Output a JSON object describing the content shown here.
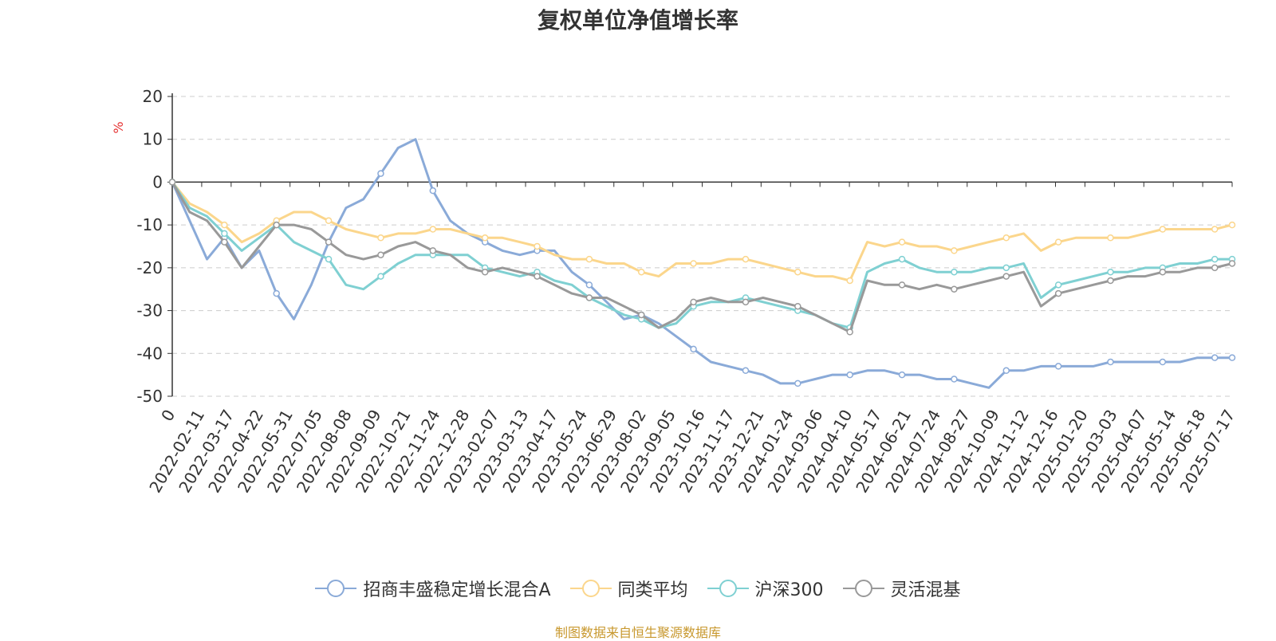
{
  "chart_data": {
    "type": "line",
    "title": "复权单位净值增长率",
    "ylabel": "%",
    "ylim": [
      -50,
      20
    ],
    "yticks": [
      20,
      10,
      0,
      -10,
      -20,
      -30,
      -40,
      -50
    ],
    "grid": true,
    "legend_position": "bottom",
    "x_tick_labels": [
      "0",
      "2022-02-11",
      "2022-03-17",
      "2022-04-22",
      "2022-05-31",
      "2022-07-05",
      "2022-08-08",
      "2022-09-09",
      "2022-10-21",
      "2022-11-24",
      "2022-12-28",
      "2023-02-07",
      "2023-03-13",
      "2023-04-17",
      "2023-05-24",
      "2023-06-29",
      "2023-08-02",
      "2023-09-05",
      "2023-10-16",
      "2023-11-17",
      "2023-12-21",
      "2024-01-24",
      "2024-03-06",
      "2024-04-10",
      "2024-05-17",
      "2024-06-21",
      "2024-07-24",
      "2024-08-27",
      "2024-10-09",
      "2024-11-12",
      "2024-12-16",
      "2025-01-20",
      "2025-03-03",
      "2025-04-07",
      "2025-05-14",
      "2025-06-18",
      "2025-07-17"
    ],
    "series": [
      {
        "name": "招商丰盛稳定增长混合A",
        "color": "#8aaad8",
        "values": [
          0,
          -9,
          -18,
          -13,
          -20,
          -16,
          -26,
          -32,
          -24,
          -14,
          -6,
          -4,
          2,
          8,
          10,
          -2,
          -9,
          -12,
          -14,
          -16,
          -17,
          -16,
          -16,
          -21,
          -24,
          -28,
          -32,
          -31,
          -33,
          -36,
          -39,
          -42,
          -43,
          -44,
          -45,
          -47,
          -47,
          -46,
          -45,
          -45,
          -44,
          -44,
          -45,
          -45,
          -46,
          -46,
          -47,
          -48,
          -44,
          -44,
          -43,
          -43,
          -43,
          -43,
          -42,
          -42,
          -42,
          -42,
          -42,
          -41,
          -41,
          -41
        ]
      },
      {
        "name": "同类平均",
        "color": "#fbd68c",
        "values": [
          0,
          -5,
          -7,
          -10,
          -14,
          -12,
          -9,
          -7,
          -7,
          -9,
          -11,
          -12,
          -13,
          -12,
          -12,
          -11,
          -11,
          -12,
          -13,
          -13,
          -14,
          -15,
          -17,
          -18,
          -18,
          -19,
          -19,
          -21,
          -22,
          -19,
          -19,
          -19,
          -18,
          -18,
          -19,
          -20,
          -21,
          -22,
          -22,
          -23,
          -14,
          -15,
          -14,
          -15,
          -15,
          -16,
          -15,
          -14,
          -13,
          -12,
          -16,
          -14,
          -13,
          -13,
          -13,
          -13,
          -12,
          -11,
          -11,
          -11,
          -11,
          -10
        ]
      },
      {
        "name": "沪深300",
        "color": "#7fd0d2",
        "values": [
          0,
          -6,
          -8,
          -12,
          -16,
          -13,
          -10,
          -14,
          -16,
          -18,
          -24,
          -25,
          -22,
          -19,
          -17,
          -17,
          -17,
          -17,
          -20,
          -21,
          -22,
          -21,
          -23,
          -24,
          -27,
          -29,
          -31,
          -32,
          -34,
          -33,
          -29,
          -28,
          -28,
          -27,
          -28,
          -29,
          -30,
          -31,
          -33,
          -34,
          -21,
          -19,
          -18,
          -20,
          -21,
          -21,
          -21,
          -20,
          -20,
          -19,
          -27,
          -24,
          -23,
          -22,
          -21,
          -21,
          -20,
          -20,
          -19,
          -19,
          -18,
          -18
        ]
      },
      {
        "name": "灵活混基",
        "color": "#999999",
        "values": [
          0,
          -7,
          -9,
          -14,
          -20,
          -15,
          -10,
          -10,
          -11,
          -14,
          -17,
          -18,
          -17,
          -15,
          -14,
          -16,
          -17,
          -20,
          -21,
          -20,
          -21,
          -22,
          -24,
          -26,
          -27,
          -27,
          -29,
          -31,
          -34,
          -32,
          -28,
          -27,
          -28,
          -28,
          -27,
          -28,
          -29,
          -31,
          -33,
          -35,
          -23,
          -24,
          -24,
          -25,
          -24,
          -25,
          -24,
          -23,
          -22,
          -21,
          -29,
          -26,
          -25,
          -24,
          -23,
          -22,
          -22,
          -21,
          -21,
          -20,
          -20,
          -19
        ]
      }
    ]
  },
  "footer": "制图数据来自恒生聚源数据库"
}
